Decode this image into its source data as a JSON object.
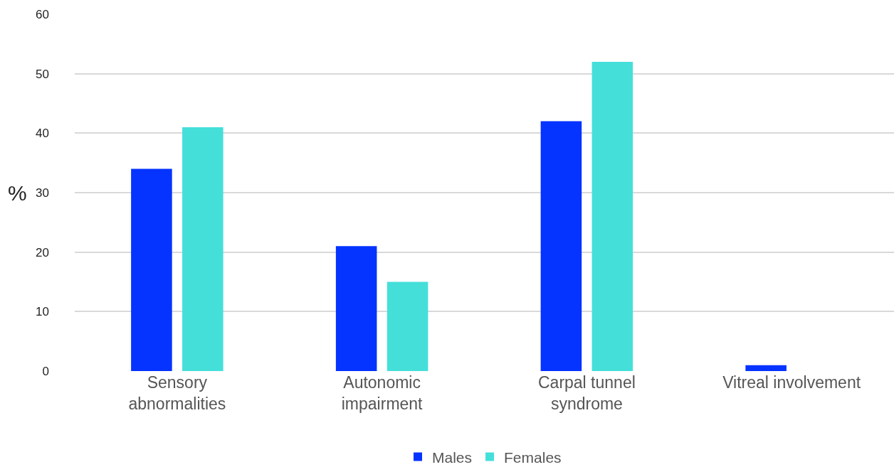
{
  "chart_data": {
    "type": "bar",
    "ylabel": "%",
    "categories": [
      "Sensory abnormalities",
      "Autonomic impairment",
      "Carpal tunnel syndrome",
      "Vitreal involvement"
    ],
    "series": [
      {
        "name": "Males",
        "color": "#0533ff",
        "values": [
          34,
          21,
          42,
          1
        ]
      },
      {
        "name": "Females",
        "color": "#45dfda",
        "values": [
          41,
          15,
          52,
          0
        ]
      }
    ],
    "ylim": [
      0,
      60
    ],
    "yticks": [
      0,
      10,
      20,
      30,
      40,
      50,
      60
    ],
    "grid": "y",
    "legend": "bottom"
  }
}
